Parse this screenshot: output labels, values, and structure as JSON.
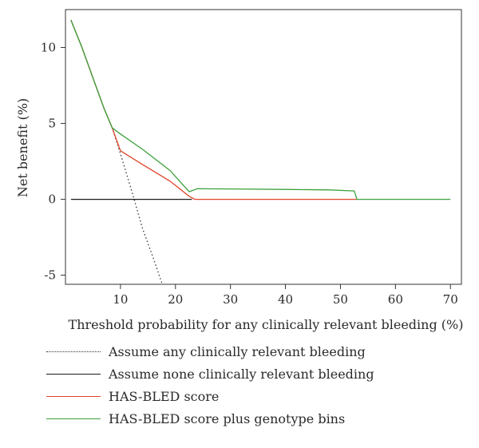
{
  "chart_data": {
    "type": "line",
    "title": "",
    "xlabel": "Threshold probability for any clinically relevant bleeding (%)",
    "ylabel": "Net benefit (%)",
    "xlim": [
      0,
      72
    ],
    "ylim": [
      -5.6,
      12.5
    ],
    "xticks": [
      10,
      20,
      30,
      40,
      50,
      60,
      70
    ],
    "yticks": [
      -5,
      0,
      5,
      10
    ],
    "xtick_labels": [
      "10",
      "20",
      "30",
      "40",
      "50",
      "60",
      "70"
    ],
    "ytick_labels": [
      "-5",
      "0",
      "5",
      "10"
    ],
    "grid": false,
    "legend_position": "bottom",
    "series": [
      {
        "name": "Assume any clinically relevant bleeding",
        "color": "#333333",
        "style": "dotted",
        "x": [
          1,
          3,
          5,
          7,
          8.5,
          10,
          12,
          14,
          16,
          17.5
        ],
        "y": [
          11.8,
          10.0,
          8.0,
          6.0,
          4.7,
          3.0,
          0.6,
          -1.9,
          -3.9,
          -5.5
        ]
      },
      {
        "name": "Assume none clinically relevant bleeding",
        "color": "#1a1a1a",
        "style": "solid",
        "x": [
          1,
          23
        ],
        "y": [
          0,
          0
        ]
      },
      {
        "name": "HAS-BLED score",
        "color": "#e0452b",
        "style": "solid",
        "x": [
          1,
          3,
          5,
          7,
          8.5,
          10,
          14,
          19,
          22.5,
          23.5,
          35,
          50,
          53
        ],
        "y": [
          11.8,
          10.0,
          8.0,
          6.0,
          4.7,
          3.2,
          2.3,
          1.2,
          0.2,
          0,
          0,
          0,
          0
        ]
      },
      {
        "name": "HAS-BLED score plus genotype bins",
        "color": "#3ca13c",
        "style": "solid",
        "x": [
          1,
          3,
          5,
          7,
          8.5,
          10,
          14,
          19,
          22.5,
          24,
          30,
          40,
          48,
          52.5,
          53,
          60,
          70
        ],
        "y": [
          11.8,
          10.0,
          8.0,
          6.0,
          4.7,
          4.3,
          3.3,
          1.9,
          0.5,
          0.7,
          0.68,
          0.65,
          0.62,
          0.55,
          0,
          0,
          0
        ]
      }
    ]
  }
}
